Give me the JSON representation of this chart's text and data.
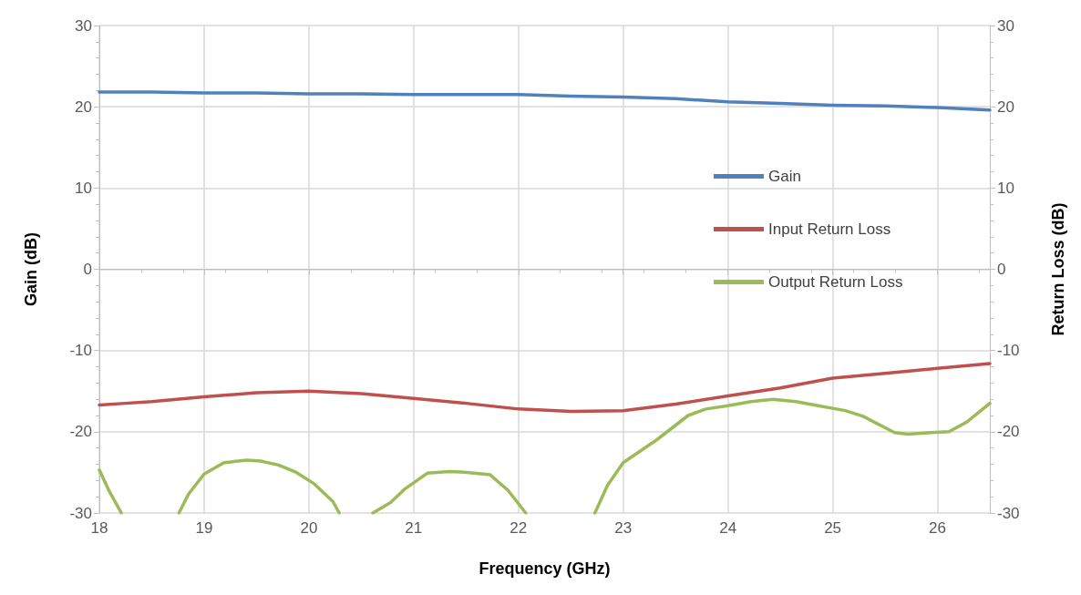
{
  "chart_data": {
    "type": "line",
    "xlabel": "Frequency (GHz)",
    "ylabel": "Gain (dB)",
    "y2label": "Return Loss (dB)",
    "xlim": [
      18,
      26.5
    ],
    "xticks": [
      18,
      19,
      20,
      21,
      22,
      23,
      24,
      25,
      26
    ],
    "ylim": [
      -30,
      30
    ],
    "yticks": [
      -30,
      -20,
      -10,
      0,
      10,
      20,
      30
    ],
    "y2lim": [
      -30,
      30
    ],
    "y2ticks": [
      -30,
      -20,
      -10,
      0,
      10,
      20,
      30
    ],
    "grid": true,
    "legend": "right",
    "marker": "none",
    "line_style": "solid",
    "series": [
      {
        "name": "Gain",
        "color": "#4f81bd",
        "x": [
          18,
          18.5,
          19,
          19.5,
          20,
          20.5,
          21,
          21.5,
          22,
          22.5,
          23,
          23.5,
          24,
          24.5,
          25,
          25.5,
          26,
          26.5
        ],
        "values": [
          21.8,
          21.8,
          21.7,
          21.7,
          21.6,
          21.6,
          21.5,
          21.5,
          21.5,
          21.3,
          21.2,
          21.0,
          20.6,
          20.4,
          20.2,
          20.1,
          19.9,
          19.6
        ]
      },
      {
        "name": "Input Return Loss",
        "color": "#c0504d",
        "axis": "y2",
        "x": [
          18,
          18.25,
          18.5,
          19,
          19.5,
          20,
          20.5,
          21,
          21.5,
          22,
          22.5,
          23,
          23.5,
          24,
          24.5,
          25,
          25.5,
          26,
          26.5
        ],
        "values": [
          -16.7,
          -16.5,
          -16.3,
          -15.7,
          -15.2,
          -15.0,
          -15.3,
          -15.9,
          -16.5,
          -17.2,
          -17.5,
          -17.4,
          -16.6,
          -15.6,
          -14.6,
          -13.4,
          -12.8,
          -12.2,
          -11.6
        ]
      },
      {
        "name": "Output Return Loss",
        "color": "#9bbb59",
        "axis": "y2",
        "x": [
          18,
          18.09,
          18.21,
          18.5,
          18.76,
          18.85,
          19.0,
          19.19,
          19.41,
          19.54,
          19.71,
          19.88,
          20.05,
          20.23,
          20.29,
          20.45,
          20.61,
          20.78,
          20.91,
          21.13,
          21.34,
          21.51,
          21.73,
          21.9,
          22.07,
          22.4,
          22.73,
          22.85,
          23.0,
          23.32,
          23.62,
          23.79,
          24.0,
          24.22,
          24.43,
          24.65,
          24.86,
          25.12,
          25.29,
          25.59,
          25.72,
          25.94,
          26.11,
          26.28,
          26.5
        ],
        "values": [
          -24.7,
          -27.2,
          -30,
          null,
          -30,
          -27.7,
          -25.2,
          -23.8,
          -23.5,
          -23.6,
          -24.1,
          -25.0,
          -26.4,
          -28.6,
          -30,
          null,
          -30,
          -28.7,
          -27.1,
          -25.1,
          -24.9,
          -25.0,
          -25.3,
          -27.2,
          -30,
          null,
          -30,
          -26.6,
          -23.8,
          -21.0,
          -18.0,
          -17.2,
          -16.8,
          -16.3,
          -16.0,
          -16.3,
          -16.8,
          -17.4,
          -18.1,
          -20.1,
          -20.3,
          -20.1,
          -20.0,
          -18.8,
          -16.5
        ]
      }
    ]
  }
}
